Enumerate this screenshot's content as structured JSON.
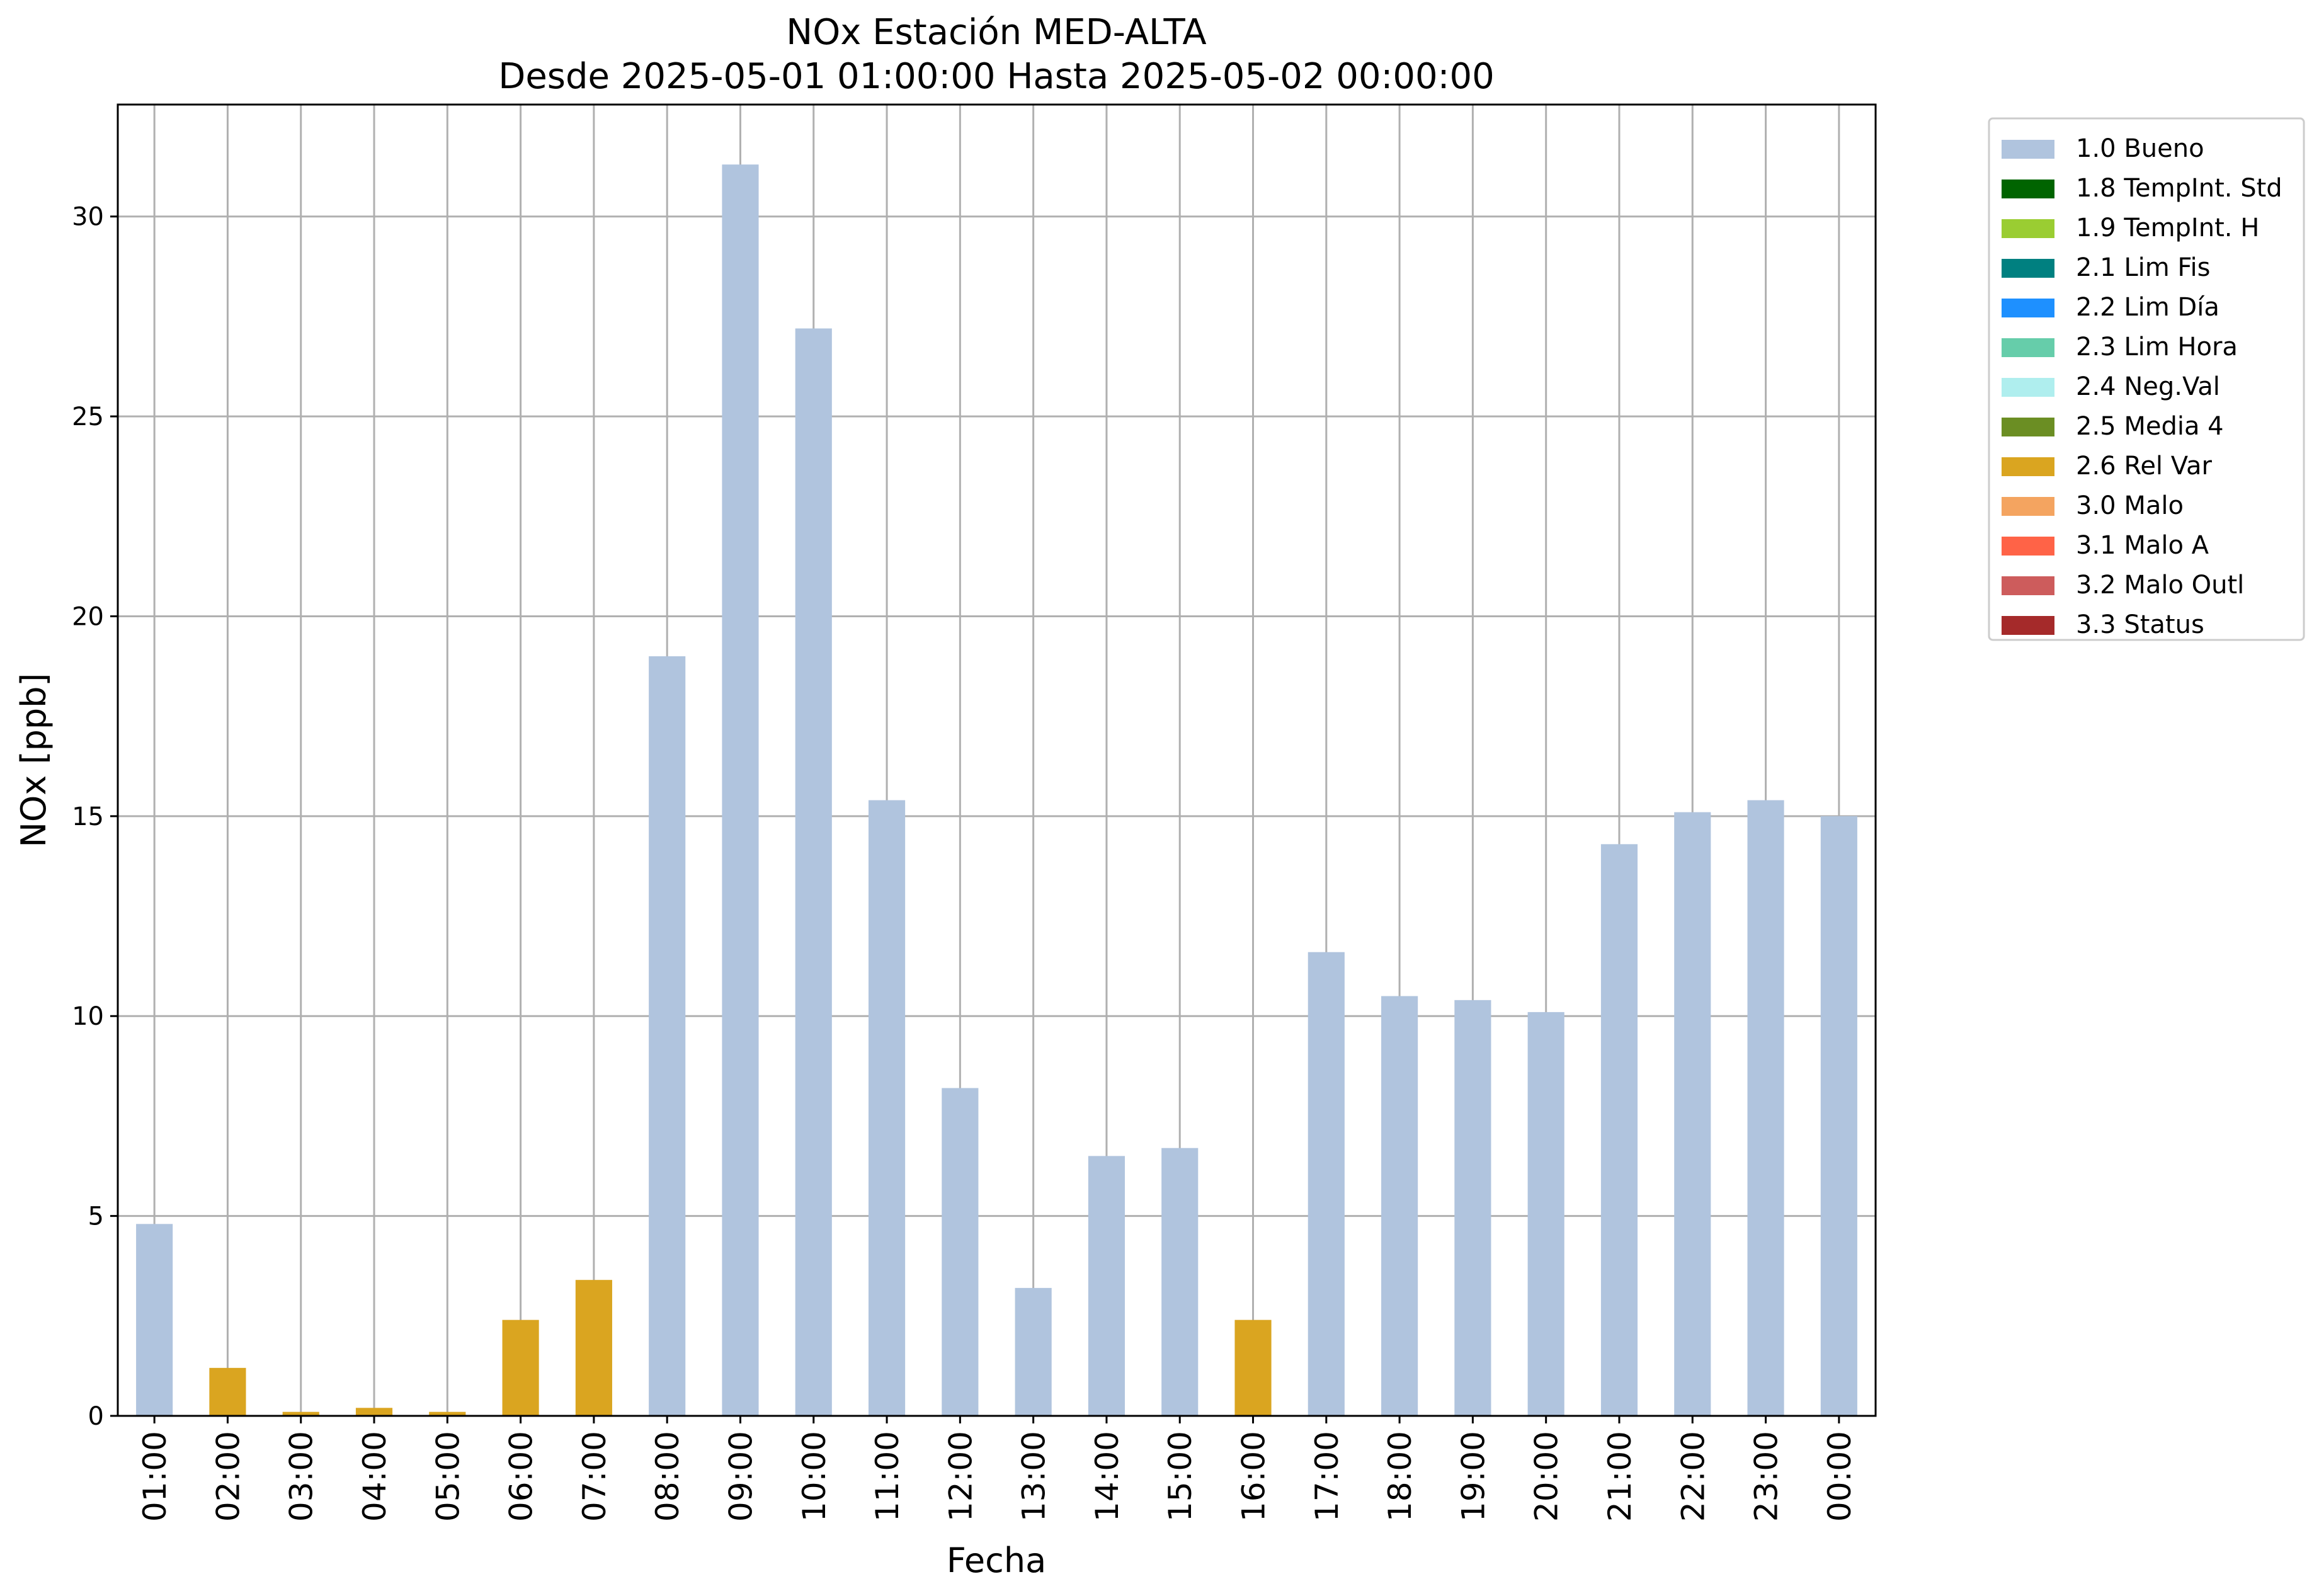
{
  "chart_data": {
    "type": "bar",
    "title": "NOx Estación MED-ALTA",
    "subtitle": "Desde 2025-05-01 01:00:00 Hasta 2025-05-02 00:00:00",
    "xlabel": "Fecha",
    "ylabel": "NOx [ppb]",
    "ylim": [
      0,
      32.8
    ],
    "yticks": [
      0,
      5,
      10,
      15,
      20,
      25,
      30
    ],
    "grid": true,
    "legend_position": "outside-right",
    "categories": [
      "01:00",
      "02:00",
      "03:00",
      "04:00",
      "05:00",
      "06:00",
      "07:00",
      "08:00",
      "09:00",
      "10:00",
      "11:00",
      "12:00",
      "13:00",
      "14:00",
      "15:00",
      "16:00",
      "17:00",
      "18:00",
      "19:00",
      "20:00",
      "21:00",
      "22:00",
      "23:00",
      "00:00"
    ],
    "values": [
      4.8,
      1.2,
      0.1,
      0.2,
      0.1,
      2.4,
      3.4,
      19.0,
      31.3,
      27.2,
      15.4,
      8.2,
      3.2,
      6.5,
      6.7,
      2.4,
      11.6,
      10.5,
      10.4,
      10.1,
      14.3,
      15.1,
      15.4,
      15.0
    ],
    "flags": [
      "1.0 Bueno",
      "2.6 Rel Var",
      "2.6 Rel Var",
      "2.6 Rel Var",
      "2.6 Rel Var",
      "2.6 Rel Var",
      "2.6 Rel Var",
      "1.0 Bueno",
      "1.0 Bueno",
      "1.0 Bueno",
      "1.0 Bueno",
      "1.0 Bueno",
      "1.0 Bueno",
      "1.0 Bueno",
      "1.0 Bueno",
      "2.6 Rel Var",
      "1.0 Bueno",
      "1.0 Bueno",
      "1.0 Bueno",
      "1.0 Bueno",
      "1.0 Bueno",
      "1.0 Bueno",
      "1.0 Bueno",
      "1.0 Bueno"
    ],
    "legend": [
      {
        "label": "1.0 Bueno",
        "color": "#b0c4de"
      },
      {
        "label": "1.8 TempInt. Std",
        "color": "#006400"
      },
      {
        "label": "1.9 TempInt. H",
        "color": "#9acd32"
      },
      {
        "label": "2.1 Lim Fis",
        "color": "#008080"
      },
      {
        "label": "2.2 Lim Día",
        "color": "#1e90ff"
      },
      {
        "label": "2.3 Lim Hora",
        "color": "#66cdaa"
      },
      {
        "label": "2.4 Neg.Val",
        "color": "#afeeee"
      },
      {
        "label": "2.5 Media 4",
        "color": "#6b8e23"
      },
      {
        "label": "2.6 Rel Var",
        "color": "#daa520"
      },
      {
        "label": "3.0 Malo",
        "color": "#f4a460"
      },
      {
        "label": "3.1 Malo A",
        "color": "#ff6347"
      },
      {
        "label": "3.2 Malo Outl",
        "color": "#cd5c5c"
      },
      {
        "label": "3.3 Status",
        "color": "#a52a2a"
      }
    ]
  }
}
